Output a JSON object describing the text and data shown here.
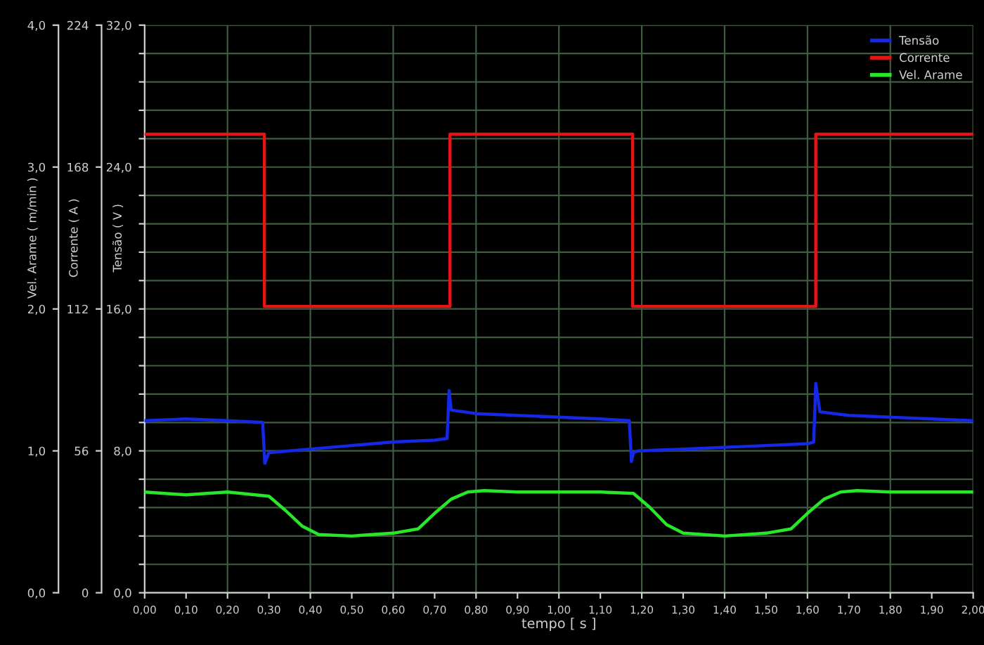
{
  "chart_data": {
    "type": "line",
    "xlabel": "tempo [ s ]",
    "ylabel": "Tensão ( V )",
    "y2label": "Corrente ( A )",
    "y3label": "Vel. Arame ( m/min )",
    "xlim": [
      0,
      2
    ],
    "xticks": [
      {
        "value": 0,
        "label": "0,00"
      },
      {
        "value": 0.1,
        "label": "0,10"
      },
      {
        "value": 0.2,
        "label": "0,20"
      },
      {
        "value": 0.3,
        "label": "0,30"
      },
      {
        "value": 0.4,
        "label": "0,40"
      },
      {
        "value": 0.5,
        "label": "0,50"
      },
      {
        "value": 0.6,
        "label": "0,60"
      },
      {
        "value": 0.7,
        "label": "0,70"
      },
      {
        "value": 0.8,
        "label": "0,80"
      },
      {
        "value": 0.9,
        "label": "0,90"
      },
      {
        "value": 1.0,
        "label": "1,00"
      },
      {
        "value": 1.1,
        "label": "1,10"
      },
      {
        "value": 1.2,
        "label": "1,20"
      },
      {
        "value": 1.3,
        "label": "1,30"
      },
      {
        "value": 1.4,
        "label": "1,40"
      },
      {
        "value": 1.5,
        "label": "1,50"
      },
      {
        "value": 1.6,
        "label": "1,60"
      },
      {
        "value": 1.7,
        "label": "1,70"
      },
      {
        "value": 1.8,
        "label": "1,80"
      },
      {
        "value": 1.9,
        "label": "1,90"
      },
      {
        "value": 2.0,
        "label": "2,00"
      }
    ],
    "ylim": [
      0,
      32
    ],
    "yticks": [
      {
        "value": 0,
        "label": "0,0"
      },
      {
        "value": 1.6,
        "label": null
      },
      {
        "value": 3.2,
        "label": null
      },
      {
        "value": 4.8,
        "label": null
      },
      {
        "value": 6.4,
        "label": null
      },
      {
        "value": 8,
        "label": "8,0"
      },
      {
        "value": 9.6,
        "label": null
      },
      {
        "value": 11.2,
        "label": null
      },
      {
        "value": 12.8,
        "label": null
      },
      {
        "value": 14.4,
        "label": null
      },
      {
        "value": 16,
        "label": "16,0"
      },
      {
        "value": 17.6,
        "label": null
      },
      {
        "value": 19.2,
        "label": null
      },
      {
        "value": 20.8,
        "label": null
      },
      {
        "value": 22.4,
        "label": null
      },
      {
        "value": 24,
        "label": "24,0"
      },
      {
        "value": 25.6,
        "label": null
      },
      {
        "value": 27.2,
        "label": null
      },
      {
        "value": 28.8,
        "label": null
      },
      {
        "value": 30.4,
        "label": null
      },
      {
        "value": 32,
        "label": "32,0"
      }
    ],
    "y2lim": [
      0,
      224
    ],
    "y2ticks": [
      0,
      56,
      112,
      168,
      224
    ],
    "y3lim": [
      0,
      4
    ],
    "y3ticks": [
      {
        "value": 0,
        "label": "0,0"
      },
      {
        "value": 1,
        "label": "1,0"
      },
      {
        "value": 2,
        "label": "2,0"
      },
      {
        "value": 3,
        "label": "3,0"
      },
      {
        "value": 4,
        "label": "4,0"
      }
    ],
    "grid": true,
    "legend": "top right",
    "marker": "none",
    "line_style": "solid",
    "series": [
      {
        "name": "Tensão",
        "color": "#1428e6",
        "axis": "y",
        "x": [
          0,
          0.1,
          0.2,
          0.285,
          0.29,
          0.3,
          0.4,
          0.5,
          0.6,
          0.7,
          0.73,
          0.735,
          0.74,
          0.8,
          0.9,
          1.0,
          1.1,
          1.17,
          1.175,
          1.18,
          1.19,
          1.3,
          1.4,
          1.5,
          1.6,
          1.615,
          1.62,
          1.63,
          1.7,
          1.8,
          1.9,
          2.0
        ],
        "values": [
          9.7,
          9.8,
          9.7,
          9.6,
          7.3,
          7.9,
          8.1,
          8.3,
          8.5,
          8.6,
          8.7,
          11.4,
          10.3,
          10.1,
          10.0,
          9.9,
          9.8,
          9.7,
          7.4,
          7.9,
          8.0,
          8.1,
          8.2,
          8.3,
          8.4,
          8.5,
          11.8,
          10.2,
          10.0,
          9.9,
          9.8,
          9.7
        ]
      },
      {
        "name": "Corrente",
        "color": "#e61414",
        "axis": "y2",
        "x": [
          0,
          0.289,
          0.289,
          0.737,
          0.737,
          1.178,
          1.178,
          1.62,
          1.62,
          2.0
        ],
        "values": [
          181,
          181,
          113,
          113,
          181,
          181,
          113,
          113,
          181,
          181
        ]
      },
      {
        "name": "Vel. Arame",
        "color": "#28e628",
        "axis": "y3",
        "x": [
          0,
          0.1,
          0.2,
          0.3,
          0.34,
          0.38,
          0.42,
          0.5,
          0.6,
          0.66,
          0.7,
          0.74,
          0.78,
          0.82,
          0.9,
          1.0,
          1.1,
          1.18,
          1.22,
          1.26,
          1.3,
          1.4,
          1.5,
          1.56,
          1.6,
          1.64,
          1.68,
          1.72,
          1.8,
          1.9,
          2.0
        ],
        "values": [
          0.71,
          0.69,
          0.71,
          0.68,
          0.58,
          0.47,
          0.41,
          0.4,
          0.42,
          0.45,
          0.56,
          0.66,
          0.71,
          0.72,
          0.71,
          0.71,
          0.71,
          0.7,
          0.6,
          0.48,
          0.42,
          0.4,
          0.42,
          0.45,
          0.56,
          0.66,
          0.71,
          0.72,
          0.71,
          0.71,
          0.71
        ]
      }
    ]
  }
}
